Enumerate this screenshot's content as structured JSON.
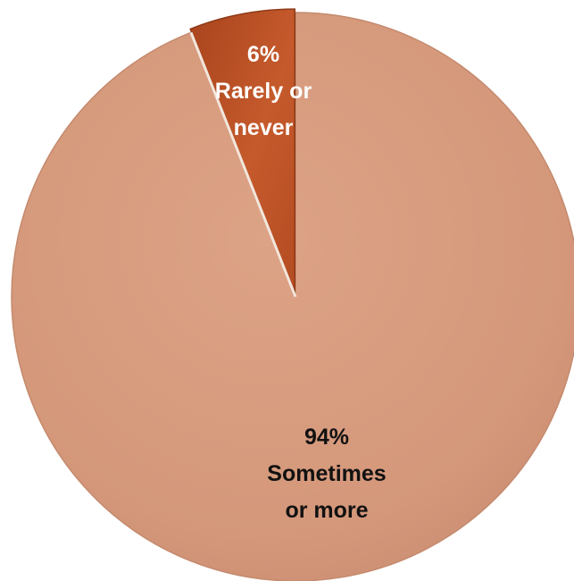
{
  "chart_data": {
    "type": "pie",
    "title": "",
    "slices": [
      {
        "value": 94,
        "value_label": "94%",
        "label_lines": [
          "Sometimes",
          "or more"
        ],
        "color": "#D4977A",
        "label_color": "#111111"
      },
      {
        "value": 6,
        "value_label": "6%",
        "label_lines": [
          "Rarely or",
          "never"
        ],
        "color": "#C0562A",
        "label_color": "#FFFFFF"
      }
    ],
    "legend": "none"
  }
}
